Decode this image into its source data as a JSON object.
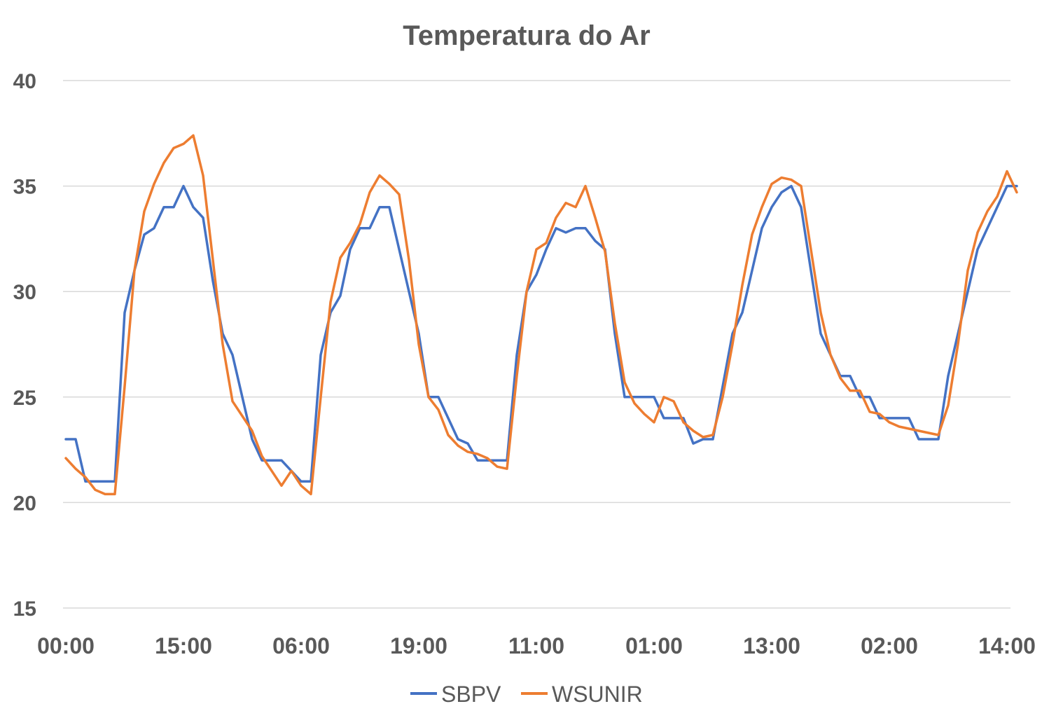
{
  "chart_data": {
    "type": "line",
    "title": "Temperatura do Ar",
    "ylim": [
      15,
      40
    ],
    "yticks": [
      "15",
      "20",
      "25",
      "30",
      "35",
      "40"
    ],
    "xtick_labels": [
      "00:00",
      "15:00",
      "06:00",
      "19:00",
      "11:00",
      "01:00",
      "13:00",
      "02:00",
      "14:00"
    ],
    "xtick_positions": [
      0,
      12,
      24,
      36,
      48,
      60,
      72,
      84,
      96
    ],
    "grid": true,
    "legend_position": "bottom",
    "series": [
      {
        "name": "SBPV",
        "color": "#4472C4",
        "values": [
          23,
          23,
          21,
          21,
          21,
          21,
          29,
          31,
          32.7,
          33,
          34,
          34,
          35,
          34,
          33.5,
          30.5,
          28,
          27,
          25,
          23,
          22,
          22,
          22,
          21.5,
          21,
          21,
          27,
          29,
          29.8,
          32,
          33,
          33,
          34,
          34,
          32,
          30,
          28,
          25,
          25,
          24,
          23,
          22.8,
          22,
          22,
          22,
          22,
          27,
          30,
          30.8,
          32,
          33,
          32.8,
          33,
          33,
          32.4,
          32,
          28,
          25,
          25,
          25,
          25,
          24,
          24,
          24,
          22.8,
          23,
          23,
          25.5,
          28,
          29,
          31,
          33,
          34,
          34.7,
          35,
          34,
          31,
          28,
          27,
          26,
          26,
          25,
          25,
          24,
          24,
          24,
          24,
          23,
          23,
          23,
          26,
          28,
          30,
          32,
          33,
          34,
          35,
          35
        ]
      },
      {
        "name": "WSUNIR",
        "color": "#ED7D31",
        "values": [
          22.1,
          21.6,
          21.2,
          20.6,
          20.4,
          20.4,
          25.5,
          31,
          33.8,
          35.1,
          36.1,
          36.8,
          37,
          37.4,
          35.5,
          31.5,
          27.5,
          24.8,
          24.1,
          23.4,
          22.2,
          21.5,
          20.8,
          21.5,
          20.8,
          20.4,
          25,
          29.5,
          31.6,
          32.3,
          33.2,
          34.7,
          35.5,
          35.1,
          34.6,
          31.5,
          27.5,
          25,
          24.4,
          23.2,
          22.7,
          22.4,
          22.3,
          22.1,
          21.7,
          21.6,
          26,
          30,
          32,
          32.3,
          33.5,
          34.2,
          34,
          35,
          33.5,
          31.9,
          28.5,
          25.7,
          24.7,
          24.2,
          23.8,
          25,
          24.8,
          23.8,
          23.4,
          23.1,
          23.2,
          25,
          27.5,
          30.3,
          32.7,
          34,
          35.1,
          35.4,
          35.3,
          35,
          32,
          29,
          27,
          25.9,
          25.3,
          25.3,
          24.3,
          24.2,
          23.8,
          23.6,
          23.5,
          23.4,
          23.3,
          23.2,
          24.6,
          27.5,
          31,
          32.8,
          33.8,
          34.5,
          35.7,
          34.7
        ]
      }
    ]
  }
}
